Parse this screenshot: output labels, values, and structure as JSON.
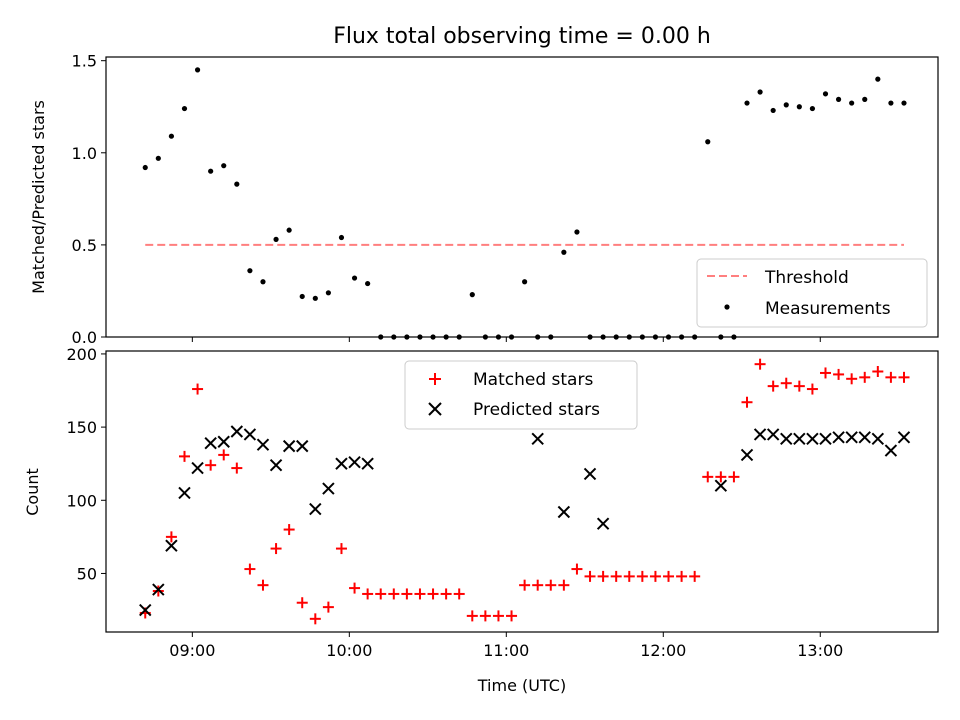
{
  "chart_data": [
    {
      "type": "scatter",
      "title": "Flux total observing time = 0.00 h",
      "xlabel": "",
      "ylabel": "Matched/Predicted stars",
      "ylim": [
        0,
        1.52
      ],
      "yticks": [
        "0.0",
        "0.5",
        "1.0",
        "1.5"
      ],
      "ytick_values": [
        0,
        0.5,
        1.0,
        1.5
      ],
      "xlim_hours": [
        8.45,
        13.75
      ],
      "legend_position": "lower-right",
      "threshold": {
        "name": "Threshold",
        "value": 0.5,
        "x_start": "08:42",
        "x_end": "13:32",
        "color": "#ff7f7f"
      },
      "series": [
        {
          "name": "Measurements",
          "color": "#000000",
          "x": [
            "08:42",
            "08:47",
            "08:52",
            "08:57",
            "09:02",
            "09:07",
            "09:12",
            "09:17",
            "09:22",
            "09:27",
            "09:32",
            "09:37",
            "09:42",
            "09:47",
            "09:52",
            "09:57",
            "10:02",
            "10:07",
            "10:12",
            "10:17",
            "10:22",
            "10:27",
            "10:32",
            "10:37",
            "10:42",
            "10:47",
            "10:52",
            "10:57",
            "11:02",
            "11:07",
            "11:12",
            "11:17",
            "11:22",
            "11:27",
            "11:32",
            "11:37",
            "11:42",
            "11:47",
            "11:52",
            "11:57",
            "12:02",
            "12:07",
            "12:12",
            "12:17",
            "12:22",
            "12:27",
            "12:32",
            "12:37",
            "12:42",
            "12:47",
            "12:52",
            "12:57",
            "13:02",
            "13:07",
            "13:12",
            "13:17",
            "13:22",
            "13:27",
            "13:32"
          ],
          "y": [
            0.92,
            0.97,
            1.09,
            1.24,
            1.45,
            0.9,
            0.93,
            0.83,
            0.36,
            0.3,
            0.53,
            0.58,
            0.22,
            0.21,
            0.24,
            0.54,
            0.32,
            0.29,
            0,
            0,
            0,
            0,
            0,
            0,
            0,
            0.23,
            0,
            0,
            0,
            0.3,
            0,
            0,
            0.46,
            0.57,
            0,
            0,
            0,
            0,
            0,
            0,
            0,
            0,
            0,
            1.06,
            0,
            0,
            1.27,
            1.33,
            1.23,
            1.26,
            1.25,
            1.24,
            1.32,
            1.29,
            1.27,
            1.29,
            1.4,
            1.27,
            1.27
          ]
        }
      ]
    },
    {
      "type": "scatter",
      "title": "",
      "xlabel": "Time (UTC)",
      "ylabel": "Count",
      "ylim": [
        10,
        202
      ],
      "yticks": [
        "50",
        "100",
        "150",
        "200"
      ],
      "ytick_values": [
        50,
        100,
        150,
        200
      ],
      "xlim_hours": [
        8.45,
        13.75
      ],
      "xticks": [
        "09:00",
        "10:00",
        "11:00",
        "12:00",
        "13:00"
      ],
      "xtick_values": [
        9,
        10,
        11,
        12,
        13
      ],
      "legend_position": "upper-center",
      "series": [
        {
          "name": "Matched stars",
          "marker": "plus",
          "color": "#ff0000",
          "x": [
            "08:42",
            "08:47",
            "08:52",
            "08:57",
            "09:02",
            "09:07",
            "09:12",
            "09:17",
            "09:22",
            "09:27",
            "09:32",
            "09:37",
            "09:42",
            "09:47",
            "09:52",
            "09:57",
            "10:02",
            "10:07",
            "10:12",
            "10:17",
            "10:22",
            "10:27",
            "10:32",
            "10:37",
            "10:42",
            "10:47",
            "10:52",
            "10:57",
            "11:02",
            "11:07",
            "11:12",
            "11:17",
            "11:22",
            "11:27",
            "11:32",
            "11:37",
            "11:42",
            "11:47",
            "11:52",
            "11:57",
            "12:02",
            "12:07",
            "12:12",
            "12:17",
            "12:22",
            "12:27",
            "12:32",
            "12:37",
            "12:42",
            "12:47",
            "12:52",
            "12:57",
            "13:02",
            "13:07",
            "13:12",
            "13:17",
            "13:22",
            "13:27",
            "13:32"
          ],
          "y": [
            23,
            38,
            75,
            130,
            176,
            124,
            131,
            122,
            53,
            42,
            67,
            80,
            30,
            19,
            27,
            67,
            40,
            36,
            36,
            36,
            36,
            36,
            36,
            36,
            36,
            21,
            21,
            21,
            21,
            42,
            42,
            42,
            42,
            53,
            48,
            48,
            48,
            48,
            48,
            48,
            48,
            48,
            48,
            116,
            116,
            116,
            167,
            193,
            178,
            180,
            178,
            176,
            187,
            186,
            183,
            184,
            188,
            184,
            184
          ]
        },
        {
          "name": "Predicted stars",
          "marker": "cross",
          "color": "#000000",
          "x": [
            "08:42",
            "08:47",
            "08:52",
            "08:57",
            "09:02",
            "09:07",
            "09:12",
            "09:17",
            "09:22",
            "09:27",
            "09:32",
            "09:37",
            "09:42",
            "09:47",
            "09:52",
            "09:57",
            "10:02",
            "10:07",
            "11:22",
            "11:12",
            "11:32",
            "11:37",
            "12:22",
            "12:32",
            "12:37",
            "12:42",
            "12:47",
            "12:52",
            "12:57",
            "13:02",
            "13:07",
            "13:12",
            "13:17",
            "13:22",
            "13:27",
            "13:32"
          ],
          "y": [
            25,
            39,
            69,
            105,
            122,
            139,
            140,
            147,
            145,
            138,
            124,
            137,
            137,
            94,
            108,
            125,
            126,
            125,
            92,
            142,
            118,
            84,
            110,
            131,
            145,
            145,
            142,
            142,
            142,
            142,
            143,
            143,
            143,
            142,
            134,
            143
          ]
        }
      ]
    }
  ]
}
